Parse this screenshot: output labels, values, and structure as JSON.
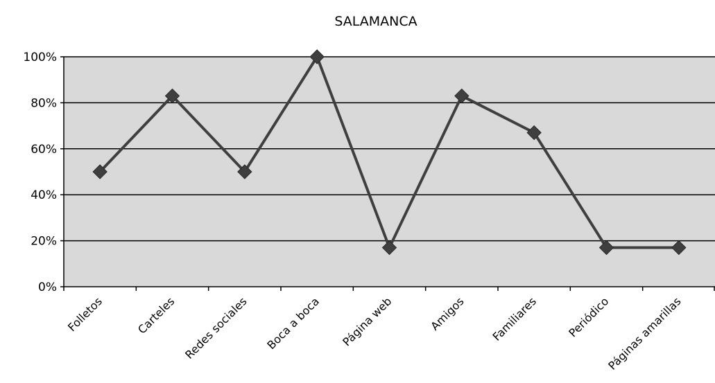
{
  "chart_data": {
    "type": "line",
    "title": "SALAMANCA",
    "xlabel": "",
    "ylabel": "",
    "categories": [
      "Folletos",
      "Carteles",
      "Redes sociales",
      "Boca a boca",
      "Página web",
      "Amigos",
      "Familiares",
      "Periódico",
      "Páginas amarillas"
    ],
    "series": [
      {
        "values": [
          0.5,
          0.83,
          0.5,
          1.0,
          0.17,
          0.83,
          0.67,
          0.17,
          0.17
        ]
      }
    ],
    "ylim": [
      0,
      1
    ],
    "yticks": [
      {
        "value": 0,
        "label": "0%"
      },
      {
        "value": 0.2,
        "label": "20%"
      },
      {
        "value": 0.4,
        "label": "40%"
      },
      {
        "value": 0.6,
        "label": "60%"
      },
      {
        "value": 0.8,
        "label": "80%"
      },
      {
        "value": 1.0,
        "label": "100%"
      }
    ],
    "grid": true,
    "legend": "none",
    "colors": {
      "plot_background": "#d9d9d9",
      "line": "#3f3f3f",
      "marker": "#3f3f3f",
      "gridline": "#000000"
    }
  }
}
